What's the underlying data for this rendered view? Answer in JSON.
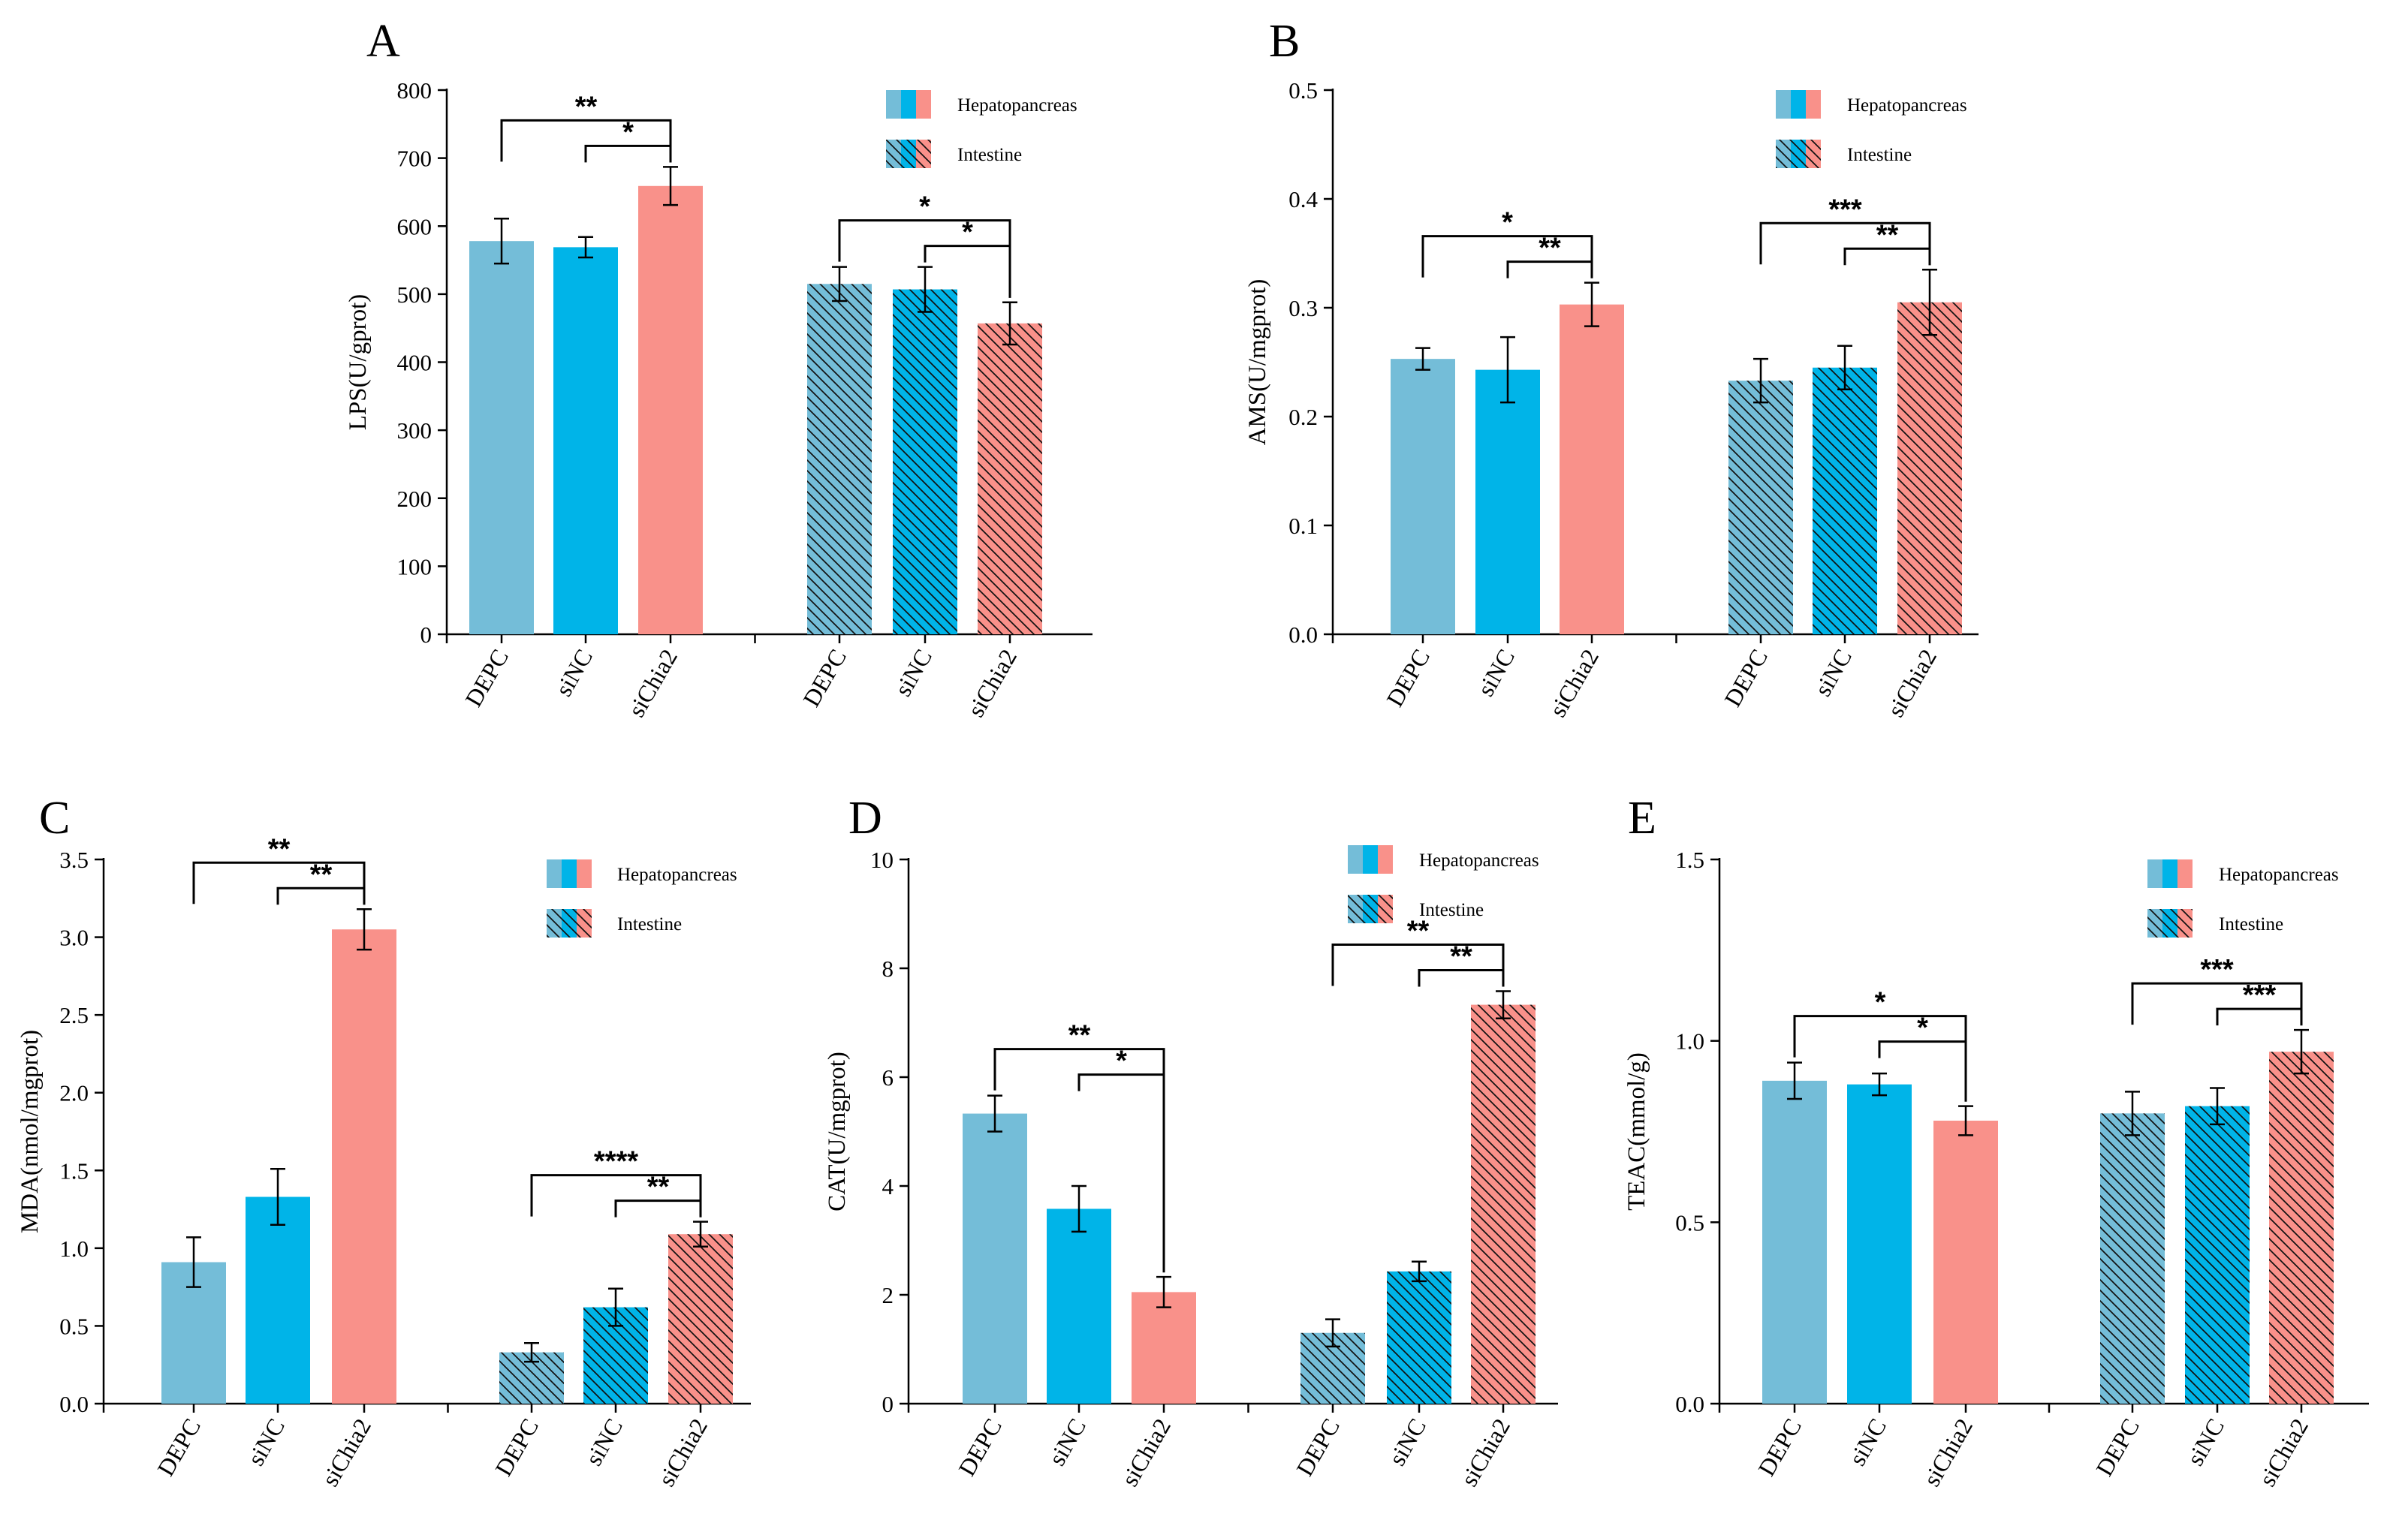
{
  "legend": {
    "hepatopancreas": "Hepatopancreas",
    "intestine": "Intestine"
  },
  "colors": {
    "DEPC": "#74bdd8",
    "siNC": "#00b4e8",
    "siChia2": "#f9918a"
  },
  "chart_data": [
    {
      "panel": "A",
      "type": "bar",
      "ylabel": "LPS(U/gprot)",
      "ylim": [
        0,
        800
      ],
      "yticks": [
        "0",
        "100",
        "200",
        "300",
        "400",
        "500",
        "600",
        "700",
        "800"
      ],
      "categories": [
        "DEPC",
        "siNC",
        "siChia2"
      ],
      "series": [
        {
          "name": "Hepatopancreas",
          "values": [
            578,
            569,
            659
          ],
          "errors": [
            33,
            15,
            28
          ]
        },
        {
          "name": "Intestine",
          "values": [
            515,
            507,
            457
          ],
          "errors": [
            25,
            33,
            31
          ]
        }
      ],
      "significance": [
        {
          "group": 0,
          "from": 0,
          "to": 2,
          "label": "**"
        },
        {
          "group": 0,
          "from": 1,
          "to": 2,
          "label": "*"
        },
        {
          "group": 1,
          "from": 0,
          "to": 2,
          "label": "*"
        },
        {
          "group": 1,
          "from": 1,
          "to": 2,
          "label": "*"
        }
      ]
    },
    {
      "panel": "B",
      "type": "bar",
      "ylabel": "AMS(U/mgprot)",
      "ylim": [
        0,
        0.5
      ],
      "yticks": [
        "0.0",
        "0.1",
        "0.2",
        "0.3",
        "0.4",
        "0.5"
      ],
      "categories": [
        "DEPC",
        "siNC",
        "siChia2"
      ],
      "series": [
        {
          "name": "Hepatopancreas",
          "values": [
            0.253,
            0.243,
            0.303
          ],
          "errors": [
            0.01,
            0.03,
            0.02
          ]
        },
        {
          "name": "Intestine",
          "values": [
            0.233,
            0.245,
            0.305
          ],
          "errors": [
            0.02,
            0.02,
            0.03
          ]
        }
      ],
      "significance": [
        {
          "group": 0,
          "from": 0,
          "to": 2,
          "label": "*"
        },
        {
          "group": 0,
          "from": 1,
          "to": 2,
          "label": "**"
        },
        {
          "group": 1,
          "from": 0,
          "to": 2,
          "label": "***"
        },
        {
          "group": 1,
          "from": 1,
          "to": 2,
          "label": "**"
        }
      ]
    },
    {
      "panel": "C",
      "type": "bar",
      "ylabel": "MDA(nmol/mgprot)",
      "ylim": [
        0,
        3.5
      ],
      "yticks": [
        "0.0",
        "0.5",
        "1.0",
        "1.5",
        "2.0",
        "2.5",
        "3.0",
        "3.5"
      ],
      "categories": [
        "DEPC",
        "siNC",
        "siChia2"
      ],
      "series": [
        {
          "name": "Hepatopancreas",
          "values": [
            0.91,
            1.33,
            3.05
          ],
          "errors": [
            0.16,
            0.18,
            0.13
          ]
        },
        {
          "name": "Intestine",
          "values": [
            0.33,
            0.62,
            1.09
          ],
          "errors": [
            0.06,
            0.12,
            0.08
          ]
        }
      ],
      "significance": [
        {
          "group": 0,
          "from": 0,
          "to": 2,
          "label": "**"
        },
        {
          "group": 0,
          "from": 1,
          "to": 2,
          "label": "**"
        },
        {
          "group": 1,
          "from": 0,
          "to": 2,
          "label": "****"
        },
        {
          "group": 1,
          "from": 1,
          "to": 2,
          "label": "**"
        }
      ]
    },
    {
      "panel": "D",
      "type": "bar",
      "ylabel": "CAT(U/mgprot)",
      "ylim": [
        0,
        10
      ],
      "yticks": [
        "0",
        "2",
        "4",
        "6",
        "8",
        "10"
      ],
      "categories": [
        "DEPC",
        "siNC",
        "siChia2"
      ],
      "series": [
        {
          "name": "Hepatopancreas",
          "values": [
            5.33,
            3.58,
            2.05
          ],
          "errors": [
            0.33,
            0.42,
            0.28
          ]
        },
        {
          "name": "Intestine",
          "values": [
            1.3,
            2.43,
            7.33
          ],
          "errors": [
            0.25,
            0.18,
            0.25
          ]
        }
      ],
      "significance": [
        {
          "group": 0,
          "from": 0,
          "to": 2,
          "label": "**"
        },
        {
          "group": 0,
          "from": 1,
          "to": 2,
          "label": "*"
        },
        {
          "group": 1,
          "from": 0,
          "to": 2,
          "label": "**"
        },
        {
          "group": 1,
          "from": 1,
          "to": 2,
          "label": "**"
        }
      ]
    },
    {
      "panel": "E",
      "type": "bar",
      "ylabel": "TEAC(mmol/g)",
      "ylim": [
        0,
        1.5
      ],
      "yticks": [
        "0.0",
        "0.5",
        "1.0",
        "1.5"
      ],
      "categories": [
        "DEPC",
        "siNC",
        "siChia2"
      ],
      "series": [
        {
          "name": "Hepatopancreas",
          "values": [
            0.89,
            0.88,
            0.78
          ],
          "errors": [
            0.05,
            0.03,
            0.04
          ]
        },
        {
          "name": "Intestine",
          "values": [
            0.8,
            0.82,
            0.97
          ],
          "errors": [
            0.06,
            0.05,
            0.06
          ]
        }
      ],
      "significance": [
        {
          "group": 0,
          "from": 0,
          "to": 2,
          "label": "*"
        },
        {
          "group": 0,
          "from": 1,
          "to": 2,
          "label": "*"
        },
        {
          "group": 1,
          "from": 0,
          "to": 2,
          "label": "***"
        },
        {
          "group": 1,
          "from": 1,
          "to": 2,
          "label": "***"
        }
      ]
    }
  ]
}
